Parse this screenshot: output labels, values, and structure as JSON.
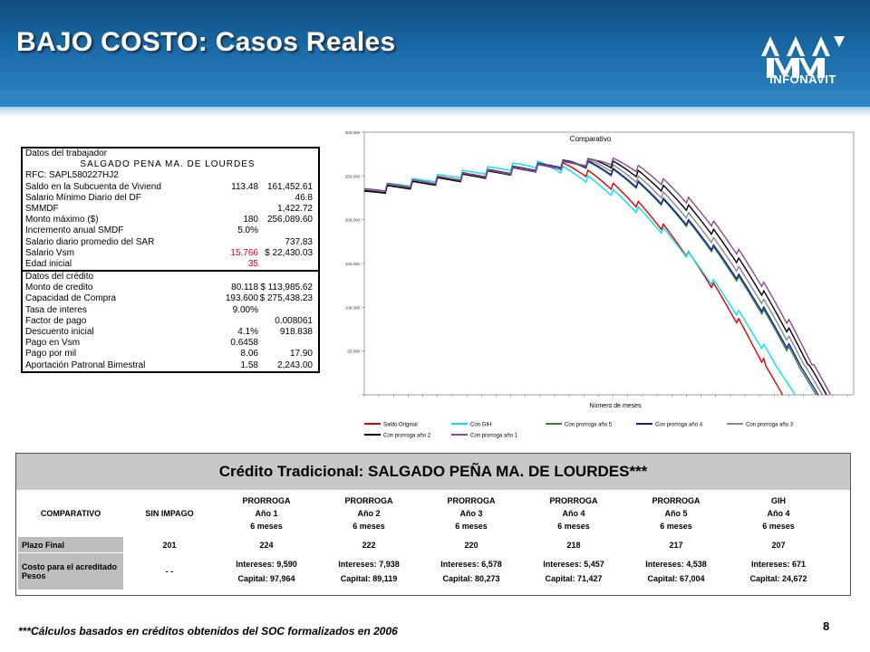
{
  "header": {
    "title": "BAJO COSTO: Casos Reales",
    "logo_text": "INFONAVIT"
  },
  "worker_table": {
    "section1_title": "Datos del trabajador",
    "name": "SALGADO PEÑA MA. DE LOURDES",
    "rows1": [
      {
        "label": "RFC: SAPL580227HJ2",
        "v1": "",
        "v2": "",
        "red": false
      },
      {
        "label": "Saldo en la Subcuenta de Viviend",
        "v1": "113.48",
        "v2": "161,452.61",
        "red": false
      },
      {
        "label": "Salario Mínimo Diario del DF",
        "v1": "",
        "v2": "46.8",
        "red": false
      },
      {
        "label": "SMMDF",
        "v1": "",
        "v2": "1,422.72",
        "red": false
      },
      {
        "label": "Monto máximo ($)",
        "v1": "180",
        "v2": "256,089.60",
        "red": false
      },
      {
        "label": "Incremento anual SMDF",
        "v1": "5.0%",
        "v2": "",
        "red": false
      },
      {
        "label": "Salario diario promedio del SAR",
        "v1": "",
        "v2": "737.83",
        "red": false
      },
      {
        "label": "Salario Vsm",
        "v1": "15.766",
        "v2": "$  22,430.03",
        "red": true
      },
      {
        "label": "Edad inicial",
        "v1": "35",
        "v2": "",
        "red": true
      }
    ],
    "section2_title": "Datos del crédito",
    "rows2": [
      {
        "label": "Monto de credito",
        "v1": "80.118",
        "v2": "$ 113,985.62"
      },
      {
        "label": "Capacidad de Compra",
        "v1": "193.600",
        "v2": "$ 275,438.23"
      },
      {
        "label": "Tasa de interes",
        "v1": "9.00%",
        "v2": ""
      },
      {
        "label": "Factor de pago",
        "v1": "",
        "v2": "0.008061"
      },
      {
        "label": "Descuento inicial",
        "v1": "4.1%",
        "v2": "918.838"
      },
      {
        "label": "Pago en Vsm",
        "v1": "0.6458",
        "v2": ""
      },
      {
        "label": "Pago por mil",
        "v1": "8.06",
        "v2": "17.90"
      },
      {
        "label": "Aportación Patronal Bimestral",
        "v1": "1.58",
        "v2": "2,243.00"
      }
    ]
  },
  "chart_data": {
    "type": "line",
    "title": "Comparativo",
    "xlabel": "Número de meses",
    "ylabel": "",
    "ylim": [
      0,
      300000
    ],
    "xlim": [
      1,
      235
    ],
    "y_ticks": [
      "-",
      "50,000",
      "100,000",
      "150,000",
      "200,000",
      "250,000",
      "300,000"
    ],
    "grid": false,
    "legend_position": "bottom",
    "series": [
      {
        "name": "Saldo Original",
        "color": "#e00000",
        "months": 201,
        "start": 230000,
        "peak": 262000,
        "peak_month": 90
      },
      {
        "name": "Con GIH",
        "color": "#00e5ee",
        "months": 207,
        "start": 230000,
        "peak": 263000,
        "peak_month": 80
      },
      {
        "name": "Con prorroga año 5",
        "color": "#2e8b3a",
        "months": 217,
        "start": 228000,
        "peak": 264000,
        "peak_month": 100
      },
      {
        "name": "Con prorroga año 4",
        "color": "#1a1aa8",
        "months": 218,
        "start": 229000,
        "peak": 265000,
        "peak_month": 100
      },
      {
        "name": "Con prorroga año 3",
        "color": "#8a8a8a",
        "months": 220,
        "start": 230000,
        "peak": 265000,
        "peak_month": 105
      },
      {
        "name": "Con prorroga año 2",
        "color": "#000000",
        "months": 222,
        "start": 228000,
        "peak": 266000,
        "peak_month": 110
      },
      {
        "name": "Con prorroga año 1",
        "color": "#8b4a8b",
        "months": 224,
        "start": 231000,
        "peak": 267000,
        "peak_month": 115
      }
    ]
  },
  "comparison": {
    "title": "Crédito Tradicional: SALGADO PEÑA MA. DE LOURDES***",
    "header_label": "COMPARATIVO",
    "columns": [
      {
        "l1": "SIN IMPAGO",
        "l2": "",
        "l3": ""
      },
      {
        "l1": "PRORROGA",
        "l2": "Año 1",
        "l3": "6 meses"
      },
      {
        "l1": "PRORROGA",
        "l2": "Año 2",
        "l3": "6 meses"
      },
      {
        "l1": "PRORROGA",
        "l2": "Año 3",
        "l3": "6 meses"
      },
      {
        "l1": "PRORROGA",
        "l2": "Año 4",
        "l3": "6 meses"
      },
      {
        "l1": "PRORROGA",
        "l2": "Año 5",
        "l3": "6 meses"
      },
      {
        "l1": "GIH",
        "l2": "Año 4",
        "l3": "6 meses"
      }
    ],
    "plazo_label": "Plazo Final",
    "plazo": [
      "201",
      "224",
      "222",
      "220",
      "218",
      "217",
      "207"
    ],
    "costo_label": "Costo para el acreditado Pesos",
    "costo": [
      {
        "i": "- -",
        "c": ""
      },
      {
        "i": "Intereses: 9,590",
        "c": "Capital: 97,964"
      },
      {
        "i": "Intereses: 7,938",
        "c": "Capital: 89,119"
      },
      {
        "i": "Intereses: 6,578",
        "c": "Capital: 80,273"
      },
      {
        "i": "Intereses: 5,457",
        "c": "Capital: 71,427"
      },
      {
        "i": "Intereses: 4,538",
        "c": "Capital: 67,004"
      },
      {
        "i": "Intereses: 671",
        "c": "Capital: 24,672"
      }
    ]
  },
  "footnote": "***Cálculos basados en créditos obtenidos del SOC formalizados en 2006",
  "page_number": "8"
}
